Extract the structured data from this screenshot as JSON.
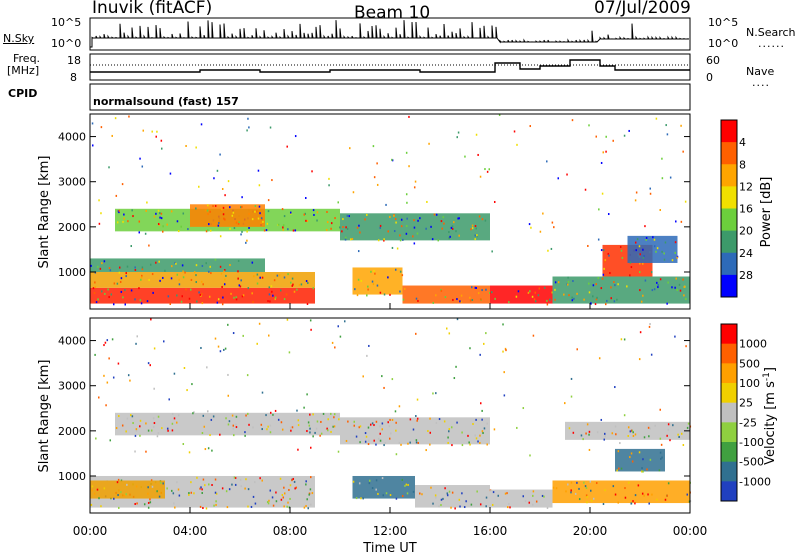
{
  "header": {
    "station": "Inuvik (fitACF)",
    "beam": "Beam 10",
    "date": "07/Jul/2009"
  },
  "top_panels": {
    "nsky_label": "N.Sky",
    "nsky_ticks": [
      "10^5",
      "10^0"
    ],
    "nsearch_label": "N.Search",
    "nsearch_ticks": [
      "10^5",
      "10^0"
    ],
    "freq_label_1": "Freq.",
    "freq_label_2": "[MHz]",
    "freq_ticks": [
      "18",
      "8"
    ],
    "nave_label": "Nave",
    "nave_ticks": [
      "60",
      "0"
    ],
    "cpid_label": "CPID",
    "cpid_value": "normalsound (fast) 157"
  },
  "chart_data": [
    {
      "type": "heatmap",
      "panel": "power",
      "ylabel": "Slant Range [km]",
      "yticks": [
        "1000",
        "2000",
        "3000",
        "4000"
      ],
      "ylim": [
        180,
        4500
      ],
      "xlim": [
        "00:00",
        "24:00"
      ],
      "colorbar_label": "Power [dB]",
      "colorbar_ticks": [
        "4",
        "8",
        "12",
        "16",
        "20",
        "24",
        "28"
      ],
      "colorbar_colors": [
        "#0000ff",
        "#2d6ab8",
        "#3c9a6a",
        "#6ccf3c",
        "#f0e000",
        "#ffa500",
        "#ff6000",
        "#ff0000"
      ],
      "regions": [
        {
          "t0": 0.0,
          "t1": 9.0,
          "r0": 300,
          "r1": 650,
          "color": "#ff2000"
        },
        {
          "t0": 0.0,
          "t1": 9.0,
          "r0": 650,
          "r1": 1000,
          "color": "#f0a000"
        },
        {
          "t0": 0.0,
          "t1": 7.0,
          "r0": 1000,
          "r1": 1300,
          "color": "#3c9a6a"
        },
        {
          "t0": 1.0,
          "t1": 10.0,
          "r0": 1900,
          "r1": 2400,
          "color": "#6ccf3c"
        },
        {
          "t0": 4.0,
          "t1": 7.0,
          "r0": 2000,
          "r1": 2500,
          "color": "#ff8000"
        },
        {
          "t0": 10.0,
          "t1": 16.0,
          "r0": 1700,
          "r1": 2300,
          "color": "#3c9a6a"
        },
        {
          "t0": 10.5,
          "t1": 12.5,
          "r0": 500,
          "r1": 1100,
          "color": "#ffa500"
        },
        {
          "t0": 12.5,
          "t1": 16.0,
          "r0": 300,
          "r1": 700,
          "color": "#ff6000"
        },
        {
          "t0": 16.0,
          "t1": 18.5,
          "r0": 300,
          "r1": 700,
          "color": "#ff0000"
        },
        {
          "t0": 18.5,
          "t1": 24.0,
          "r0": 300,
          "r1": 900,
          "color": "#3c9a6a"
        },
        {
          "t0": 20.5,
          "t1": 22.5,
          "r0": 900,
          "r1": 1600,
          "color": "#ff3000"
        },
        {
          "t0": 21.5,
          "t1": 23.5,
          "r0": 1200,
          "r1": 1800,
          "color": "#2d6ab8"
        }
      ]
    },
    {
      "type": "heatmap",
      "panel": "velocity",
      "ylabel": "Slant Range [km]",
      "yticks": [
        "1000",
        "2000",
        "3000",
        "4000"
      ],
      "ylim": [
        180,
        4500
      ],
      "xlim": [
        "00:00",
        "24:00"
      ],
      "xticks": [
        "00:00",
        "04:00",
        "08:00",
        "12:00",
        "16:00",
        "20:00",
        "00:00"
      ],
      "xlabel": "Time UT",
      "colorbar_label": "Velocity [m s",
      "colorbar_label_sup": "-1",
      "colorbar_label_end": "]",
      "colorbar_ticks": [
        "1000",
        "500",
        "100",
        "25",
        "-25",
        "-100",
        "-500",
        "-1000"
      ],
      "colorbar_colors": [
        "#2040c0",
        "#307090",
        "#40a040",
        "#8fd040",
        "#c0c0c0",
        "#f0d000",
        "#ffa000",
        "#ff6000",
        "#ff0000"
      ],
      "regions": [
        {
          "t0": 0.0,
          "t1": 9.0,
          "r0": 300,
          "r1": 1000,
          "color": "#c0c0c0"
        },
        {
          "t0": 0.0,
          "t1": 3.0,
          "r0": 500,
          "r1": 900,
          "color": "#f0a000"
        },
        {
          "t0": 1.0,
          "t1": 10.0,
          "r0": 1900,
          "r1": 2400,
          "color": "#c0c0c0"
        },
        {
          "t0": 10.0,
          "t1": 16.0,
          "r0": 1700,
          "r1": 2300,
          "color": "#c0c0c0"
        },
        {
          "t0": 10.5,
          "t1": 13.0,
          "r0": 500,
          "r1": 1000,
          "color": "#307090"
        },
        {
          "t0": 13.0,
          "t1": 16.0,
          "r0": 300,
          "r1": 800,
          "color": "#c0c0c0"
        },
        {
          "t0": 16.0,
          "t1": 18.5,
          "r0": 300,
          "r1": 700,
          "color": "#c0c0c0"
        },
        {
          "t0": 18.5,
          "t1": 24.0,
          "r0": 400,
          "r1": 900,
          "color": "#ffa000"
        },
        {
          "t0": 21.0,
          "t1": 23.0,
          "r0": 1100,
          "r1": 1600,
          "color": "#307090"
        },
        {
          "t0": 19.0,
          "t1": 24.0,
          "r0": 1800,
          "r1": 2200,
          "color": "#c0c0c0"
        }
      ]
    }
  ]
}
